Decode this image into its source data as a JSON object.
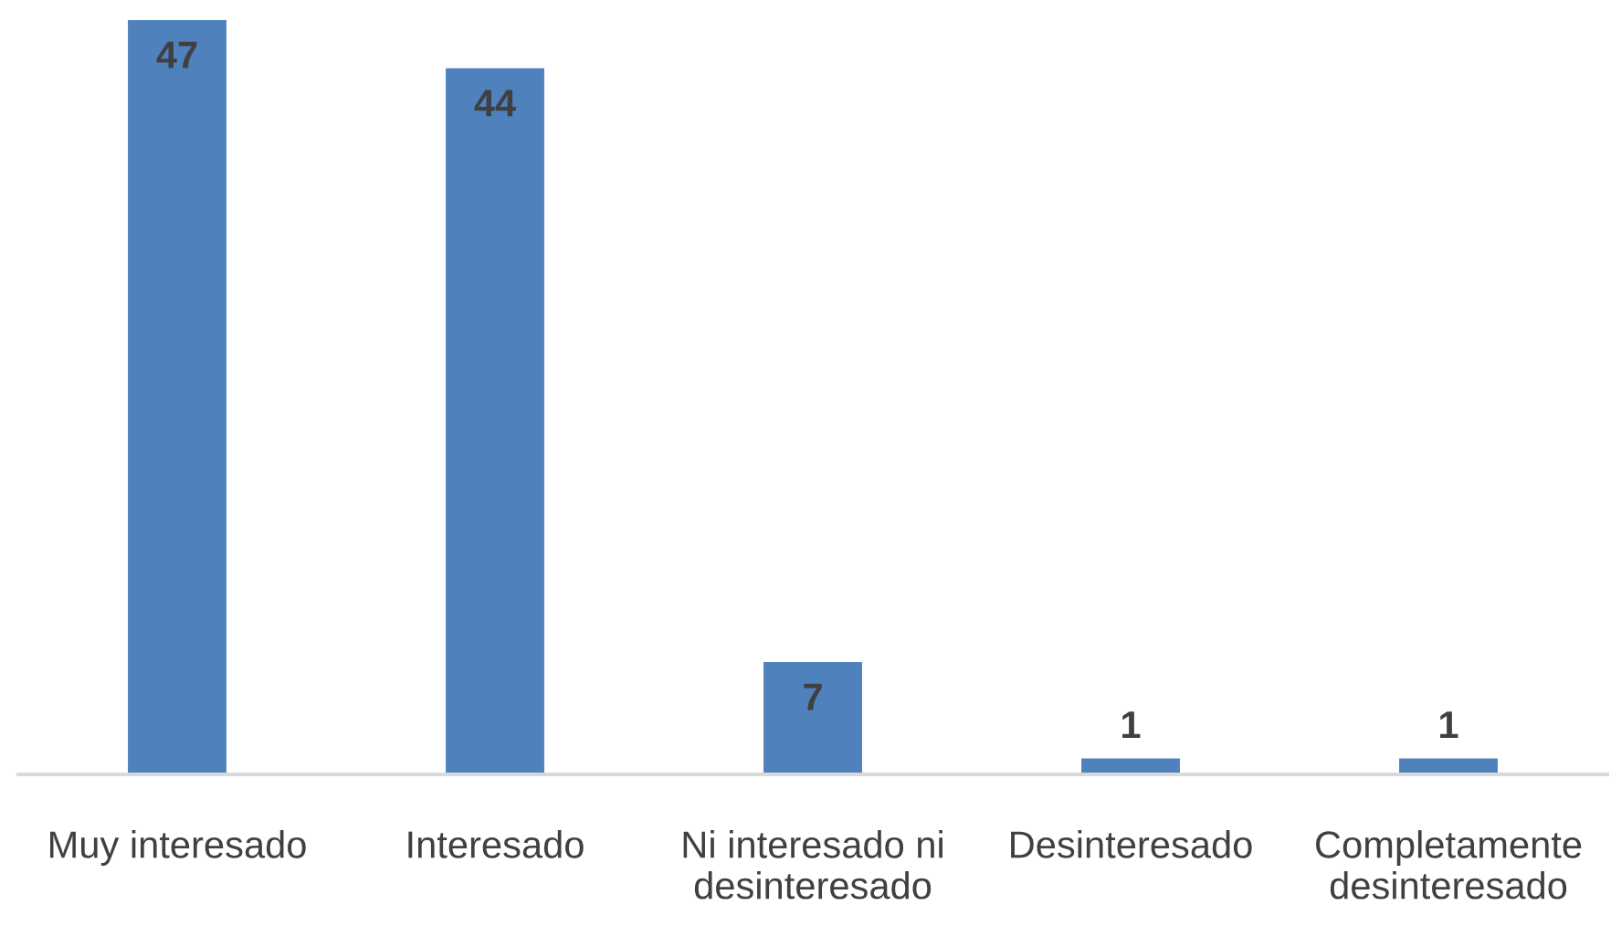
{
  "chart_data": {
    "type": "bar",
    "categories": [
      "Muy interesado",
      "Interesado",
      "Ni interesado ni\ndesinteresado",
      "Desinteresado",
      "Completamente\ndesinteresado"
    ],
    "values": [
      47,
      44,
      7,
      1,
      1
    ],
    "color": "#4f81bd",
    "data_labels": true,
    "grid": false,
    "legend": false
  }
}
